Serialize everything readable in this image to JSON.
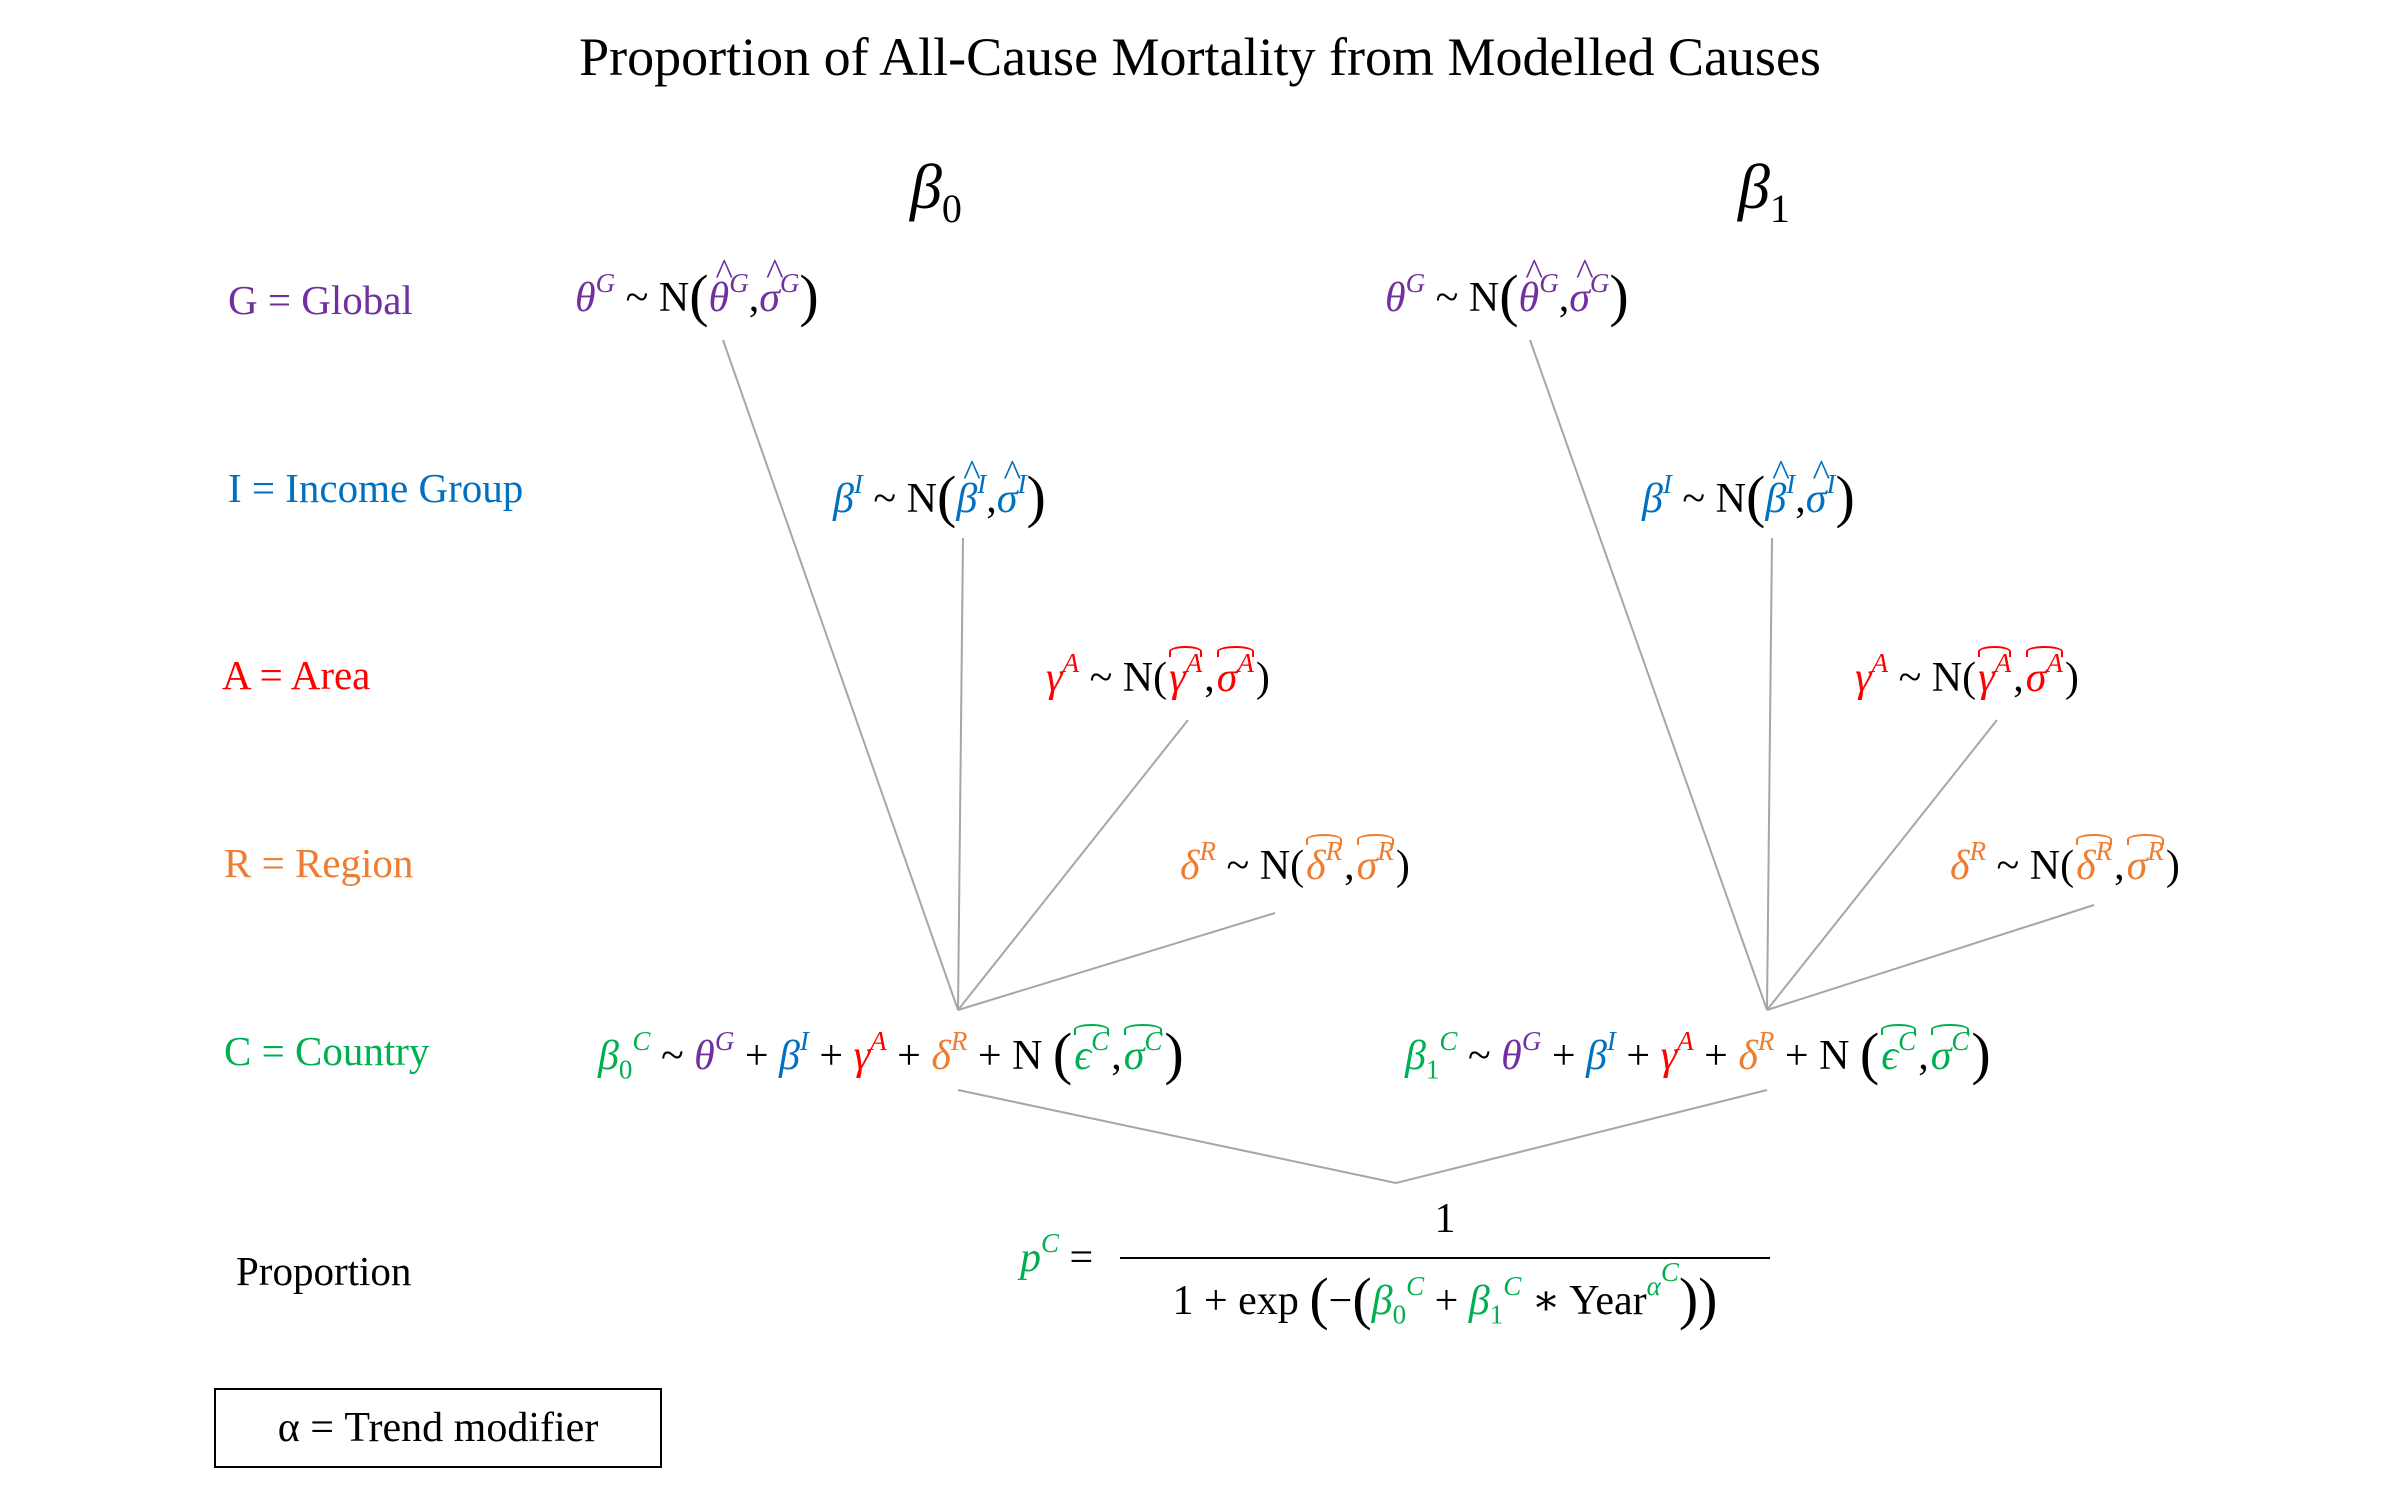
{
  "title": "Proportion of All-Cause Mortality from Modelled Causes",
  "columns": {
    "beta0": {
      "symbol": "β",
      "subscript": "0"
    },
    "beta1": {
      "symbol": "β",
      "subscript": "1"
    }
  },
  "levels": {
    "global": "G = Global",
    "income": "I = Income Group",
    "area": "A = Area",
    "region": "R = Region",
    "country": "C = Country",
    "proportion": "Proportion"
  },
  "symbols": {
    "theta": "θ",
    "beta": "β",
    "gamma": "γ",
    "delta": "δ",
    "sigma": "σ",
    "epsilon": "ϵ",
    "sim": "~",
    "normal": "N",
    "plus": "+",
    "equals": "=",
    "one": "1",
    "exp": "exp",
    "minus": "−",
    "times": "∗",
    "year": "Year",
    "alpha": "α",
    "p": "p",
    "G": "G",
    "I": "I",
    "A": "A",
    "R": "R",
    "C": "C",
    "sub0": "0",
    "sub1": "1",
    "comma": ",",
    "lparen": "(",
    "rparen": ")"
  },
  "trend_box": "α = Trend modifier",
  "colors": {
    "global": "#7030a0",
    "income": "#0070c0",
    "area": "#ff0000",
    "region": "#ed7d31",
    "country": "#00b050",
    "connector": "#a6a6a6"
  }
}
